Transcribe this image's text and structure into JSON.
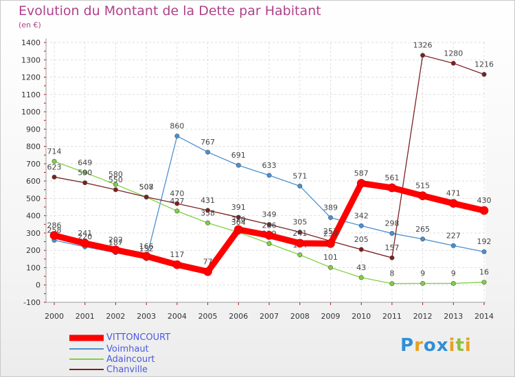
{
  "chart_data": {
    "type": "line",
    "title": "Evolution du Montant de la Dette par Habitant",
    "subtitle": "(en €)",
    "xlabel": "",
    "ylabel": "",
    "ylim": [
      -100,
      1400
    ],
    "y_ticks": [
      -100,
      0,
      100,
      200,
      300,
      400,
      500,
      600,
      700,
      800,
      900,
      1000,
      1100,
      1200,
      1300,
      1400
    ],
    "x": [
      "2000",
      "2001",
      "2002",
      "2003",
      "2004",
      "2005",
      "2006",
      "2007",
      "2008",
      "2009",
      "2010",
      "2011",
      "2012",
      "2013",
      "2014"
    ],
    "grid": true,
    "legend_position": "bottom-left",
    "series": [
      {
        "name": "VITTONCOURT",
        "color": "#ff0000",
        "values": [
          286,
          241,
          202,
          166,
          117,
          77,
          320,
          286,
          241,
          239,
          587,
          561,
          515,
          471,
          430
        ]
      },
      {
        "name": "Voimhaut",
        "color": "#4a90d0",
        "values": [
          258,
          220,
          187,
          152,
          860,
          767,
          691,
          633,
          571,
          389,
          342,
          298,
          265,
          227,
          192
        ]
      },
      {
        "name": "Adaincourt",
        "color": "#80d040",
        "values": [
          714,
          649,
          580,
          507,
          427,
          358,
          304,
          239,
          174,
          101,
          43,
          8,
          9,
          9,
          16
        ]
      },
      {
        "name": "Chanville",
        "color": "#7a2020",
        "values": [
          623,
          590,
          550,
          508,
          470,
          431,
          391,
          349,
          305,
          253,
          205,
          157,
          1326,
          1280,
          1216
        ]
      }
    ]
  }
}
